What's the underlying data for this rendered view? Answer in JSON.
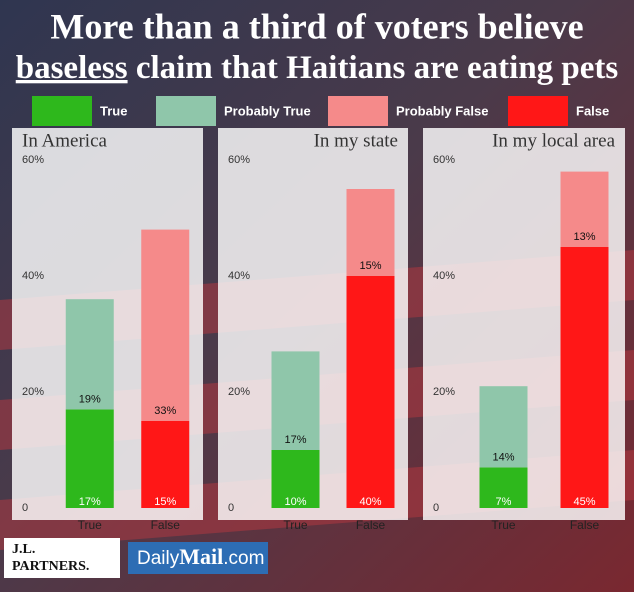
{
  "title": "More than a third of voters believe",
  "subtitle_underlined": "baseless",
  "subtitle": "claim that  Haitians are eating pets",
  "chart_data": [
    {
      "type": "bar",
      "stacked": true,
      "title": "In America",
      "categories": [
        "True",
        "False"
      ],
      "series": [
        {
          "name": "True",
          "color": "#2eb81c",
          "values": [
            17,
            null
          ],
          "value_labels": [
            "17%",
            null
          ]
        },
        {
          "name": "Probably True",
          "color": "#8fc6aa",
          "values": [
            19,
            null
          ],
          "value_labels": [
            "19%",
            null
          ]
        },
        {
          "name": "Probably False",
          "color": "#f58a8a",
          "values": [
            null,
            33
          ],
          "value_labels": [
            null,
            "33%"
          ]
        },
        {
          "name": "False",
          "color": "#ff1717",
          "values": [
            null,
            15
          ],
          "value_labels": [
            null,
            "15%"
          ]
        }
      ],
      "ylim": [
        0,
        60
      ],
      "yticks": [
        0,
        {
          "value": 20,
          "label": "20%"
        },
        {
          "value": 40,
          "label": "40%"
        },
        {
          "value": 60,
          "label": "60%"
        }
      ]
    },
    {
      "type": "bar",
      "stacked": true,
      "title": "In my state",
      "categories": [
        "True",
        "False"
      ],
      "series": [
        {
          "name": "True",
          "color": "#2eb81c",
          "values": [
            10,
            null
          ],
          "value_labels": [
            "10%",
            null
          ]
        },
        {
          "name": "Probably True",
          "color": "#8fc6aa",
          "values": [
            17,
            null
          ],
          "value_labels": [
            "17%",
            null
          ]
        },
        {
          "name": "Probably False",
          "color": "#f58a8a",
          "values": [
            null,
            15
          ],
          "value_labels": [
            null,
            "15%"
          ]
        },
        {
          "name": "False",
          "color": "#ff1717",
          "values": [
            null,
            40
          ],
          "value_labels": [
            null,
            "40%"
          ]
        }
      ],
      "ylim": [
        0,
        60
      ],
      "yticks": [
        0,
        {
          "value": 20,
          "label": "20%"
        },
        {
          "value": 40,
          "label": "40%"
        },
        {
          "value": 60,
          "label": "60%"
        }
      ]
    },
    {
      "type": "bar",
      "stacked": true,
      "title": "In my local area",
      "categories": [
        "True",
        "False"
      ],
      "series": [
        {
          "name": "True",
          "color": "#2eb81c",
          "values": [
            7,
            null
          ],
          "value_labels": [
            "7%",
            null
          ]
        },
        {
          "name": "Probably True",
          "color": "#8fc6aa",
          "values": [
            14,
            null
          ],
          "value_labels": [
            "14%",
            null
          ]
        },
        {
          "name": "Probably False",
          "color": "#f58a8a",
          "values": [
            null,
            13
          ],
          "value_labels": [
            null,
            "13%"
          ]
        },
        {
          "name": "False",
          "color": "#ff1717",
          "values": [
            null,
            45
          ],
          "value_labels": [
            null,
            "45%"
          ]
        }
      ],
      "ylim": [
        0,
        60
      ],
      "yticks": [
        0,
        {
          "value": 20,
          "label": "20%"
        },
        {
          "value": 40,
          "label": "40%"
        },
        {
          "value": 60,
          "label": "60%"
        }
      ]
    }
  ],
  "footer": {
    "jl_partners": [
      "J.L.",
      "PARTNERS."
    ],
    "daily_mail": [
      "Daily",
      "Mail",
      ".com"
    ]
  }
}
